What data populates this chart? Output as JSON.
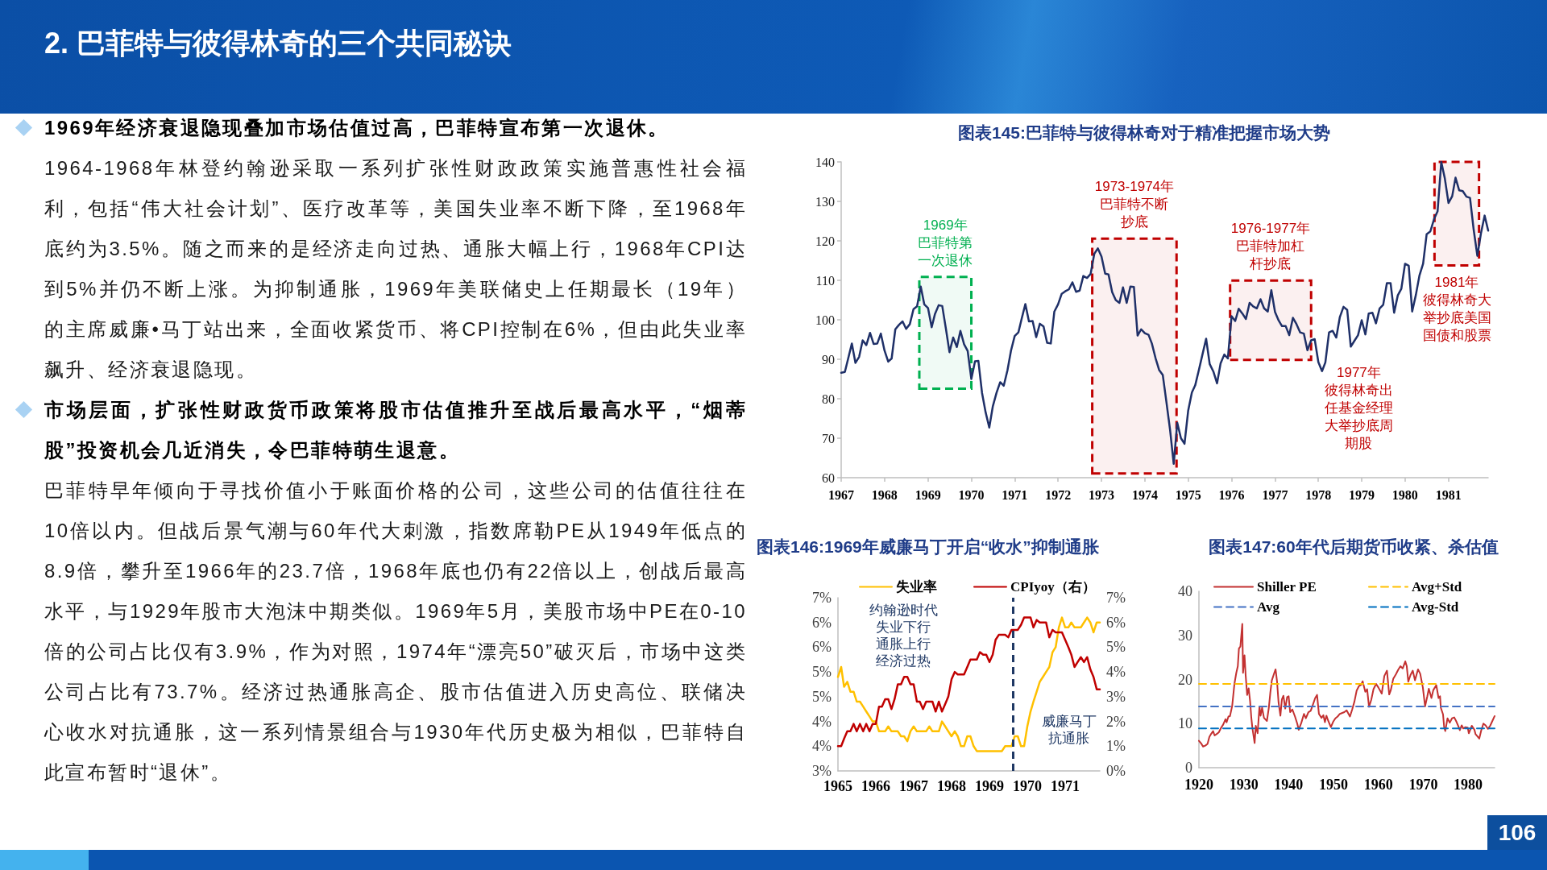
{
  "chart_data": [
    {
      "type": "other",
      "title": "2. 巴菲特与彼得林奇的三个共同秘诀",
      "annotations": [
        "1969年经济衰退隐现叠加市场估值过高，巴菲特宣布第一次退休。",
        "1964-1968年林登约翰逊采取一系列扩张性财政政策实施普惠性社会福利，包括“伟大社会计划”、医疗改革等，美国失业率不断下降，至1968年底约为3.5%。随之而来的是经济走向过热、通胀大幅上行，1968年CPI达到5%并仍不断上涨。为抑制通胀，1969年美联储史上任期最长（19年）的主席威廉•马丁站出来，全面收紧货币、将CPI控制在6%，但由此失业率飙升、经济衰退隐现。",
        "市场层面，扩张性财政货币政策将股市估值推升至战后最高水平，“烟蒂股”投资机会几近消失，令巴菲特萌生退意。",
        "巴菲特早年倾向于寻找价值小于账面价格的公司，这些公司的估值往往在10倍以内。但战后景气潮与60年代大刺激，指数席勒PE从1949年低点的8.9倍，攀升至1966年的23.7倍，1968年底也仍有22倍以上，创战后最高水平，与1929年股市大泡沫中期类似。1969年5月，美股市场中PE在0-10倍的公司占比仅有3.9%，作为对照，1974年“漂亮50”破灭后，市场中这类公司占比有73.7%。经济过热通胀高企、股市估值进入历史高位、联储决心收水对抗通胀，这一系列情景组合与1930年代历史极为相似，巴菲特自此宣布暂时“退休”。",
        "106"
      ]
    },
    {
      "type": "line",
      "title": "图表145:巴菲特与彼得林奇对于精准把握市场大势",
      "x": [
        "1967-01",
        "1967-02",
        "1967-03",
        "1967-04",
        "1967-05",
        "1967-06",
        "1967-07",
        "1967-08",
        "1967-09",
        "1967-10",
        "1967-11",
        "1967-12",
        "1968-01",
        "1968-02",
        "1968-03",
        "1968-04",
        "1968-05",
        "1968-06",
        "1968-07",
        "1968-08",
        "1968-09",
        "1968-10",
        "1968-11",
        "1968-12",
        "1969-01",
        "1969-02",
        "1969-03",
        "1969-04",
        "1969-05",
        "1969-06",
        "1969-07",
        "1969-08",
        "1969-09",
        "1969-10",
        "1969-11",
        "1969-12",
        "1970-01",
        "1970-02",
        "1970-03",
        "1970-04",
        "1970-05",
        "1970-06",
        "1970-07",
        "1970-08",
        "1970-09",
        "1970-10",
        "1970-11",
        "1970-12",
        "1971-01",
        "1971-02",
        "1971-03",
        "1971-04",
        "1971-05",
        "1971-06",
        "1971-07",
        "1971-08",
        "1971-09",
        "1971-10",
        "1971-11",
        "1971-12",
        "1972-01",
        "1972-02",
        "1972-03",
        "1972-04",
        "1972-05",
        "1972-06",
        "1972-07",
        "1972-08",
        "1972-09",
        "1972-10",
        "1972-11",
        "1972-12",
        "1973-01",
        "1973-02",
        "1973-03",
        "1973-04",
        "1973-05",
        "1973-06",
        "1973-07",
        "1973-08",
        "1973-09",
        "1973-10",
        "1973-11",
        "1973-12",
        "1974-01",
        "1974-02",
        "1974-03",
        "1974-04",
        "1974-05",
        "1974-06",
        "1974-07",
        "1974-08",
        "1974-09",
        "1974-10",
        "1974-11",
        "1974-12",
        "1975-01",
        "1975-02",
        "1975-03",
        "1975-04",
        "1975-05",
        "1975-06",
        "1975-07",
        "1975-08",
        "1975-09",
        "1975-10",
        "1975-11",
        "1975-12",
        "1976-01",
        "1976-02",
        "1976-03",
        "1976-04",
        "1976-05",
        "1976-06",
        "1976-07",
        "1976-08",
        "1976-09",
        "1976-10",
        "1976-11",
        "1976-12",
        "1977-01",
        "1977-02",
        "1977-03",
        "1977-04",
        "1977-05",
        "1977-06",
        "1977-07",
        "1977-08",
        "1977-09",
        "1977-10",
        "1977-11",
        "1977-12",
        "1978-01",
        "1978-02",
        "1978-03",
        "1978-04",
        "1978-05",
        "1978-06",
        "1978-07",
        "1978-08",
        "1978-09",
        "1978-10",
        "1978-11",
        "1978-12",
        "1979-01",
        "1979-02",
        "1979-03",
        "1979-04",
        "1979-05",
        "1979-06",
        "1979-07",
        "1979-08",
        "1979-09",
        "1979-10",
        "1979-11",
        "1979-12",
        "1980-01",
        "1980-02",
        "1980-03",
        "1980-04",
        "1980-05",
        "1980-06",
        "1980-07",
        "1980-08",
        "1980-09",
        "1980-10",
        "1980-11",
        "1980-12",
        "1981-01",
        "1981-02",
        "1981-03",
        "1981-04",
        "1981-05",
        "1981-06",
        "1981-07",
        "1981-08",
        "1981-09",
        "1981-10",
        "1981-11",
        "1981-12"
      ],
      "series": [
        {
          "color": "#1f3068",
          "values": [
            86.6,
            86.8,
            90.2,
            94.0,
            89.1,
            90.6,
            94.8,
            93.6,
            96.7,
            93.9,
            94.0,
            96.5,
            92.2,
            89.4,
            90.2,
            97.6,
            98.7,
            99.6,
            97.7,
            98.9,
            102.7,
            103.4,
            108.4,
            103.9,
            103.0,
            98.1,
            101.5,
            103.7,
            103.5,
            97.7,
            91.8,
            95.5,
            93.1,
            97.2,
            93.8,
            92.1,
            85.0,
            89.5,
            89.6,
            81.5,
            76.6,
            72.7,
            78.1,
            81.5,
            84.2,
            83.3,
            87.2,
            92.2,
            95.9,
            96.8,
            100.3,
            104.0,
            99.6,
            99.7,
            95.6,
            99.0,
            98.3,
            94.2,
            94.0,
            102.1,
            103.9,
            106.6,
            107.2,
            107.7,
            109.5,
            107.1,
            107.4,
            111.1,
            110.6,
            111.6,
            116.7,
            118.1,
            116.0,
            111.7,
            111.5,
            107.0,
            105.0,
            104.3,
            108.2,
            104.3,
            108.4,
            108.3,
            96.0,
            97.6,
            96.6,
            96.2,
            94.0,
            90.3,
            87.3,
            86.0,
            79.3,
            72.2,
            63.5,
            73.9,
            70.0,
            68.6,
            77.0,
            81.6,
            83.4,
            87.3,
            91.2,
            95.2,
            88.8,
            86.9,
            83.9,
            89.0,
            91.2,
            90.2,
            100.9,
            99.7,
            102.8,
            101.6,
            100.2,
            104.3,
            103.4,
            102.9,
            105.2,
            102.9,
            102.1,
            107.5,
            102.0,
            99.8,
            98.4,
            98.4,
            96.1,
            100.5,
            98.9,
            96.8,
            96.5,
            92.3,
            94.8,
            95.1,
            89.3,
            87.0,
            89.2,
            96.8,
            97.2,
            95.5,
            100.7,
            103.3,
            102.5,
            93.2,
            94.7,
            96.1,
            99.9,
            96.3,
            101.6,
            101.8,
            99.1,
            102.9,
            103.8,
            109.3,
            109.3,
            101.8,
            106.2,
            107.9,
            114.2,
            113.7,
            102.1,
            106.3,
            111.2,
            114.2,
            121.7,
            122.4,
            125.5,
            127.5,
            140.0,
            135.8,
            129.6,
            131.3,
            136.0,
            132.8,
            132.6,
            131.2,
            130.9,
            122.8,
            116.2,
            121.9,
            126.4,
            122.6
          ]
        }
      ],
      "xlim": [
        "1967-01",
        "1981-12"
      ],
      "xticks": [
        "1967",
        "1968",
        "1969",
        "1970",
        "1971",
        "1972",
        "1973",
        "1974",
        "1975",
        "1976",
        "1977",
        "1978",
        "1979",
        "1980",
        "1981"
      ],
      "ylim": [
        60,
        140
      ],
      "yticks": [
        60,
        70,
        80,
        90,
        100,
        110,
        120,
        130,
        140
      ],
      "bands": [
        {
          "axis": "x",
          "from": "1968-10-20",
          "to": "1970-01",
          "label": "1969年巴菲特第一次退休",
          "color": "#00b050"
        },
        {
          "axis": "x",
          "from": "1972-10-15",
          "to": "1974-09-25",
          "label": "1973-1974年巴菲特不断抄底",
          "color": "#c00000"
        },
        {
          "axis": "x",
          "from": "1975-12-20",
          "to": "1977-11",
          "label": "1976-1977年巴菲特加杠杆抄底",
          "color": "#c00000"
        },
        {
          "axis": "x",
          "from": "1980-09-05",
          "to": "1981-09-15",
          "label": "1981年彼得林奇大举抄底美国国债和股票",
          "color": "#c00000"
        }
      ],
      "annotations": [
        "1977年彼得林奇出任基金经理大举抄底周期股"
      ]
    },
    {
      "type": "line",
      "title": "图表146:1969年威廉马丁开启“收水”抑制通胀",
      "x": [
        "1965-01",
        "1965-02",
        "1965-03",
        "1965-04",
        "1965-05",
        "1965-06",
        "1965-07",
        "1965-08",
        "1965-09",
        "1965-10",
        "1965-11",
        "1965-12",
        "1966-01",
        "1966-02",
        "1966-03",
        "1966-04",
        "1966-05",
        "1966-06",
        "1966-07",
        "1966-08",
        "1966-09",
        "1966-10",
        "1966-11",
        "1966-12",
        "1967-01",
        "1967-02",
        "1967-03",
        "1967-04",
        "1967-05",
        "1967-06",
        "1967-07",
        "1967-08",
        "1967-09",
        "1967-10",
        "1967-11",
        "1967-12",
        "1968-01",
        "1968-02",
        "1968-03",
        "1968-04",
        "1968-05",
        "1968-06",
        "1968-07",
        "1968-08",
        "1968-09",
        "1968-10",
        "1968-11",
        "1968-12",
        "1969-01",
        "1969-02",
        "1969-03",
        "1969-04",
        "1969-05",
        "1969-06",
        "1969-07",
        "1969-08",
        "1969-09",
        "1969-10",
        "1969-11",
        "1969-12",
        "1970-01",
        "1970-02",
        "1970-03",
        "1970-04",
        "1970-05",
        "1970-06",
        "1970-07",
        "1970-08",
        "1970-09",
        "1970-10",
        "1970-11",
        "1970-12",
        "1971-01",
        "1971-02",
        "1971-03",
        "1971-04",
        "1971-05",
        "1971-06",
        "1971-07",
        "1971-08",
        "1971-09",
        "1971-10",
        "1971-11",
        "1971-12"
      ],
      "series": [
        {
          "name": "失业率",
          "color": "#ffc000",
          "values": [
            4.9,
            5.1,
            4.7,
            4.8,
            4.6,
            4.6,
            4.4,
            4.4,
            4.3,
            4.2,
            4.1,
            4.0,
            4.0,
            3.8,
            3.8,
            3.8,
            3.9,
            3.8,
            3.8,
            3.8,
            3.7,
            3.7,
            3.6,
            3.8,
            3.9,
            3.8,
            3.8,
            3.8,
            3.8,
            3.9,
            3.8,
            3.8,
            3.8,
            4.0,
            3.9,
            3.8,
            3.7,
            3.8,
            3.7,
            3.5,
            3.5,
            3.7,
            3.7,
            3.5,
            3.4,
            3.4,
            3.4,
            3.4,
            3.4,
            3.4,
            3.4,
            3.4,
            3.4,
            3.5,
            3.5,
            3.5,
            3.7,
            3.7,
            3.5,
            3.5,
            3.9,
            4.2,
            4.4,
            4.6,
            4.8,
            4.9,
            5.0,
            5.1,
            5.4,
            5.5,
            5.9,
            6.1,
            5.9,
            5.9,
            6.0,
            5.9,
            5.9,
            5.9,
            6.0,
            6.1,
            6.0,
            5.8,
            6.0,
            6.0
          ]
        },
        {
          "name": "CPIyoy（右）",
          "color": "#c00000",
          "axis": "y2",
          "values": [
            1.0,
            1.0,
            1.3,
            1.6,
            1.6,
            1.9,
            1.6,
            1.9,
            1.6,
            1.9,
            1.6,
            1.9,
            1.9,
            2.6,
            2.6,
            2.9,
            2.9,
            2.5,
            2.9,
            3.5,
            3.5,
            3.8,
            3.8,
            3.5,
            3.5,
            2.8,
            2.8,
            2.5,
            2.8,
            2.8,
            2.8,
            2.4,
            2.8,
            2.4,
            2.7,
            3.0,
            3.7,
            4.0,
            3.9,
            3.9,
            3.9,
            4.2,
            4.5,
            4.5,
            4.5,
            4.8,
            4.7,
            4.7,
            4.4,
            4.7,
            5.3,
            5.5,
            5.5,
            5.5,
            5.4,
            5.7,
            5.7,
            5.7,
            5.9,
            6.2,
            6.2,
            6.2,
            5.8,
            6.1,
            6.0,
            6.0,
            6.0,
            5.4,
            5.7,
            5.6,
            5.6,
            5.6,
            5.3,
            5.0,
            4.7,
            4.2,
            4.4,
            4.6,
            4.4,
            4.6,
            4.1,
            3.8,
            3.3,
            3.3
          ]
        }
      ],
      "xlim": [
        "1965-01",
        "1971-12"
      ],
      "xticks": [
        "1965",
        "1966",
        "1967",
        "1968",
        "1969",
        "1970",
        "1971"
      ],
      "ylim": [
        3,
        6.5
      ],
      "yticks": [
        {
          "value": 3,
          "label": "3%"
        },
        {
          "value": 3.5,
          "label": "4%"
        },
        {
          "value": 4,
          "label": "4%"
        },
        {
          "value": 4.5,
          "label": "5%"
        },
        {
          "value": 5,
          "label": "5%"
        },
        {
          "value": 5.5,
          "label": "6%"
        },
        {
          "value": 6,
          "label": "6%"
        },
        {
          "value": 6.5,
          "label": "7%"
        }
      ],
      "y2lim": [
        0,
        7
      ],
      "y2ticks": [
        {
          "value": 0,
          "label": "0%"
        },
        {
          "value": 1,
          "label": "1%"
        },
        {
          "value": 2,
          "label": "2%"
        },
        {
          "value": 3,
          "label": "3%"
        },
        {
          "value": 4,
          "label": "4%"
        },
        {
          "value": 5,
          "label": "5%"
        },
        {
          "value": 6,
          "label": "6%"
        },
        {
          "value": 7,
          "label": "7%"
        }
      ],
      "ref_lines": [
        {
          "axis": "x",
          "value": "1969-08-15",
          "color": "#1f3864",
          "line_style": "dashed"
        }
      ],
      "annotations": [
        "约翰逊时代失业下行通胀上行经济过热",
        "威廉马丁抗通胀"
      ],
      "legend": "top"
    },
    {
      "type": "line",
      "title": "图表147:60年代后期货币收紧、杀估值",
      "x": [
        "1920-01",
        "1920-07",
        "1920-12",
        "1921-06",
        "1921-12",
        "1922-05",
        "1922-10",
        "1923-03",
        "1923-07",
        "1923-12",
        "1924-06",
        "1924-12",
        "1925-06",
        "1925-12",
        "1926-03",
        "1926-08",
        "1926-12",
        "1927-06",
        "1927-12",
        "1928-05",
        "1928-09",
        "1928-12",
        "1929-04",
        "1929-09",
        "1929-11",
        "1930-03",
        "1930-06",
        "1930-10",
        "1931-02",
        "1931-06",
        "1931-09",
        "1931-12",
        "1932-06",
        "1932-09",
        "1933-02",
        "1933-07",
        "1933-10",
        "1934-02",
        "1934-07",
        "1935-03",
        "1935-08",
        "1935-12",
        "1936-04",
        "1936-11",
        "1937-02",
        "1937-06",
        "1937-10",
        "1938-03",
        "1938-07",
        "1938-11",
        "1939-04",
        "1939-09",
        "1940-01",
        "1940-05",
        "1940-11",
        "1941-06",
        "1941-12",
        "1942-04",
        "1942-11",
        "1943-06",
        "1943-11",
        "1944-06",
        "1944-12",
        "1945-06",
        "1945-12",
        "1946-05",
        "1946-10",
        "1947-05",
        "1947-10",
        "1948-02",
        "1948-06",
        "1948-11",
        "1949-06",
        "1949-12",
        "1950-06",
        "1950-12",
        "1951-06",
        "1952-06",
        "1952-12",
        "1953-09",
        "1954-03",
        "1954-09",
        "1955-03",
        "1955-09",
        "1956-03",
        "1956-07",
        "1957-02",
        "1957-07",
        "1957-12",
        "1958-06",
        "1958-12",
        "1959-07",
        "1960-01",
        "1960-10",
        "1961-05",
        "1961-12",
        "1962-06",
        "1962-10",
        "1963-05",
        "1963-12",
        "1964-06",
        "1964-12",
        "1965-06",
        "1966-01",
        "1966-05",
        "1966-09",
        "1967-03",
        "1967-09",
        "1968-03",
        "1968-11",
        "1969-05",
        "1969-12",
        "1970-06",
        "1970-12",
        "1971-04",
        "1971-11",
        "1972-04",
        "1972-12",
        "1973-06",
        "1973-10",
        "1973-12",
        "1974-06",
        "1974-09",
        "1974-12",
        "1975-06",
        "1975-12",
        "1976-06",
        "1976-12",
        "1977-06",
        "1977-12",
        "1978-03",
        "1978-08",
        "1978-12",
        "1979-06",
        "1979-12",
        "1980-03",
        "1980-11",
        "1981-06",
        "1981-09",
        "1982-03",
        "1982-07",
        "1982-12",
        "1983-06",
        "1983-12",
        "1984-06",
        "1984-12",
        "1985-06",
        "1985-12"
      ],
      "series": [
        {
          "name": "Shiller PE",
          "color": "#c33131",
          "values": [
            6.1,
            5.5,
            4.8,
            5.0,
            5.4,
            7.0,
            7.7,
            8.3,
            7.3,
            7.6,
            8.0,
            9.0,
            9.8,
            11.0,
            10.3,
            11.6,
            11.7,
            14.0,
            19.0,
            21.5,
            23.0,
            27.0,
            27.5,
            32.6,
            21.5,
            25.5,
            21.0,
            16.5,
            18.0,
            15.0,
            11.5,
            9.0,
            5.6,
            9.5,
            7.8,
            13.9,
            11.8,
            13.6,
            11.3,
            10.6,
            13.6,
            17.0,
            19.8,
            21.6,
            22.3,
            19.5,
            14.8,
            11.8,
            15.5,
            16.3,
            13.4,
            16.0,
            16.2,
            12.6,
            13.2,
            11.6,
            10.0,
            8.6,
            10.2,
            12.2,
            11.2,
            12.6,
            12.9,
            14.3,
            15.8,
            16.5,
            12.2,
            11.3,
            11.9,
            10.3,
            11.8,
            10.6,
            9.2,
            10.4,
            11.2,
            11.6,
            12.2,
            12.6,
            13.0,
            11.6,
            13.2,
            15.0,
            17.5,
            18.5,
            18.8,
            19.6,
            17.2,
            17.8,
            13.8,
            15.4,
            17.8,
            19.0,
            18.2,
            16.8,
            20.8,
            22.0,
            16.6,
            17.5,
            20.2,
            21.2,
            22.2,
            23.0,
            22.5,
            24.1,
            23.0,
            19.5,
            21.0,
            22.0,
            19.8,
            22.3,
            21.3,
            18.2,
            13.9,
            16.2,
            17.9,
            15.8,
            17.6,
            18.7,
            15.8,
            16.2,
            13.6,
            12.1,
            9.2,
            8.3,
            11.2,
            10.2,
            11.2,
            11.4,
            10.4,
            9.2,
            8.5,
            9.6,
            8.9,
            9.2,
            9.1,
            7.8,
            9.5,
            8.6,
            7.6,
            7.0,
            6.6,
            8.4,
            10.0,
            9.6,
            8.8,
            9.5,
            10.6,
            11.7
          ]
        },
        {
          "name": "Avg+Std",
          "color": "#ffc000",
          "x": [
            "1920-01",
            "1985-12"
          ],
          "values": [
            19.0,
            19.0
          ],
          "line_style": "dashed"
        },
        {
          "name": "Avg",
          "color": "#4472c4",
          "x": [
            "1920-01",
            "1985-12"
          ],
          "values": [
            13.9,
            13.9
          ],
          "line_style": "dashed"
        },
        {
          "name": "Avg-Std",
          "color": "#0070c0",
          "x": [
            "1920-01",
            "1985-12"
          ],
          "values": [
            8.9,
            8.9
          ],
          "line_style": "dashed"
        }
      ],
      "xlim": [
        "1920-01",
        "1985-12"
      ],
      "xticks": [
        "1920",
        "1930",
        "1940",
        "1950",
        "1960",
        "1970",
        "1980"
      ],
      "ylim": [
        0,
        40
      ],
      "yticks": [
        0,
        10,
        20,
        30,
        40
      ],
      "legend": "top"
    }
  ]
}
